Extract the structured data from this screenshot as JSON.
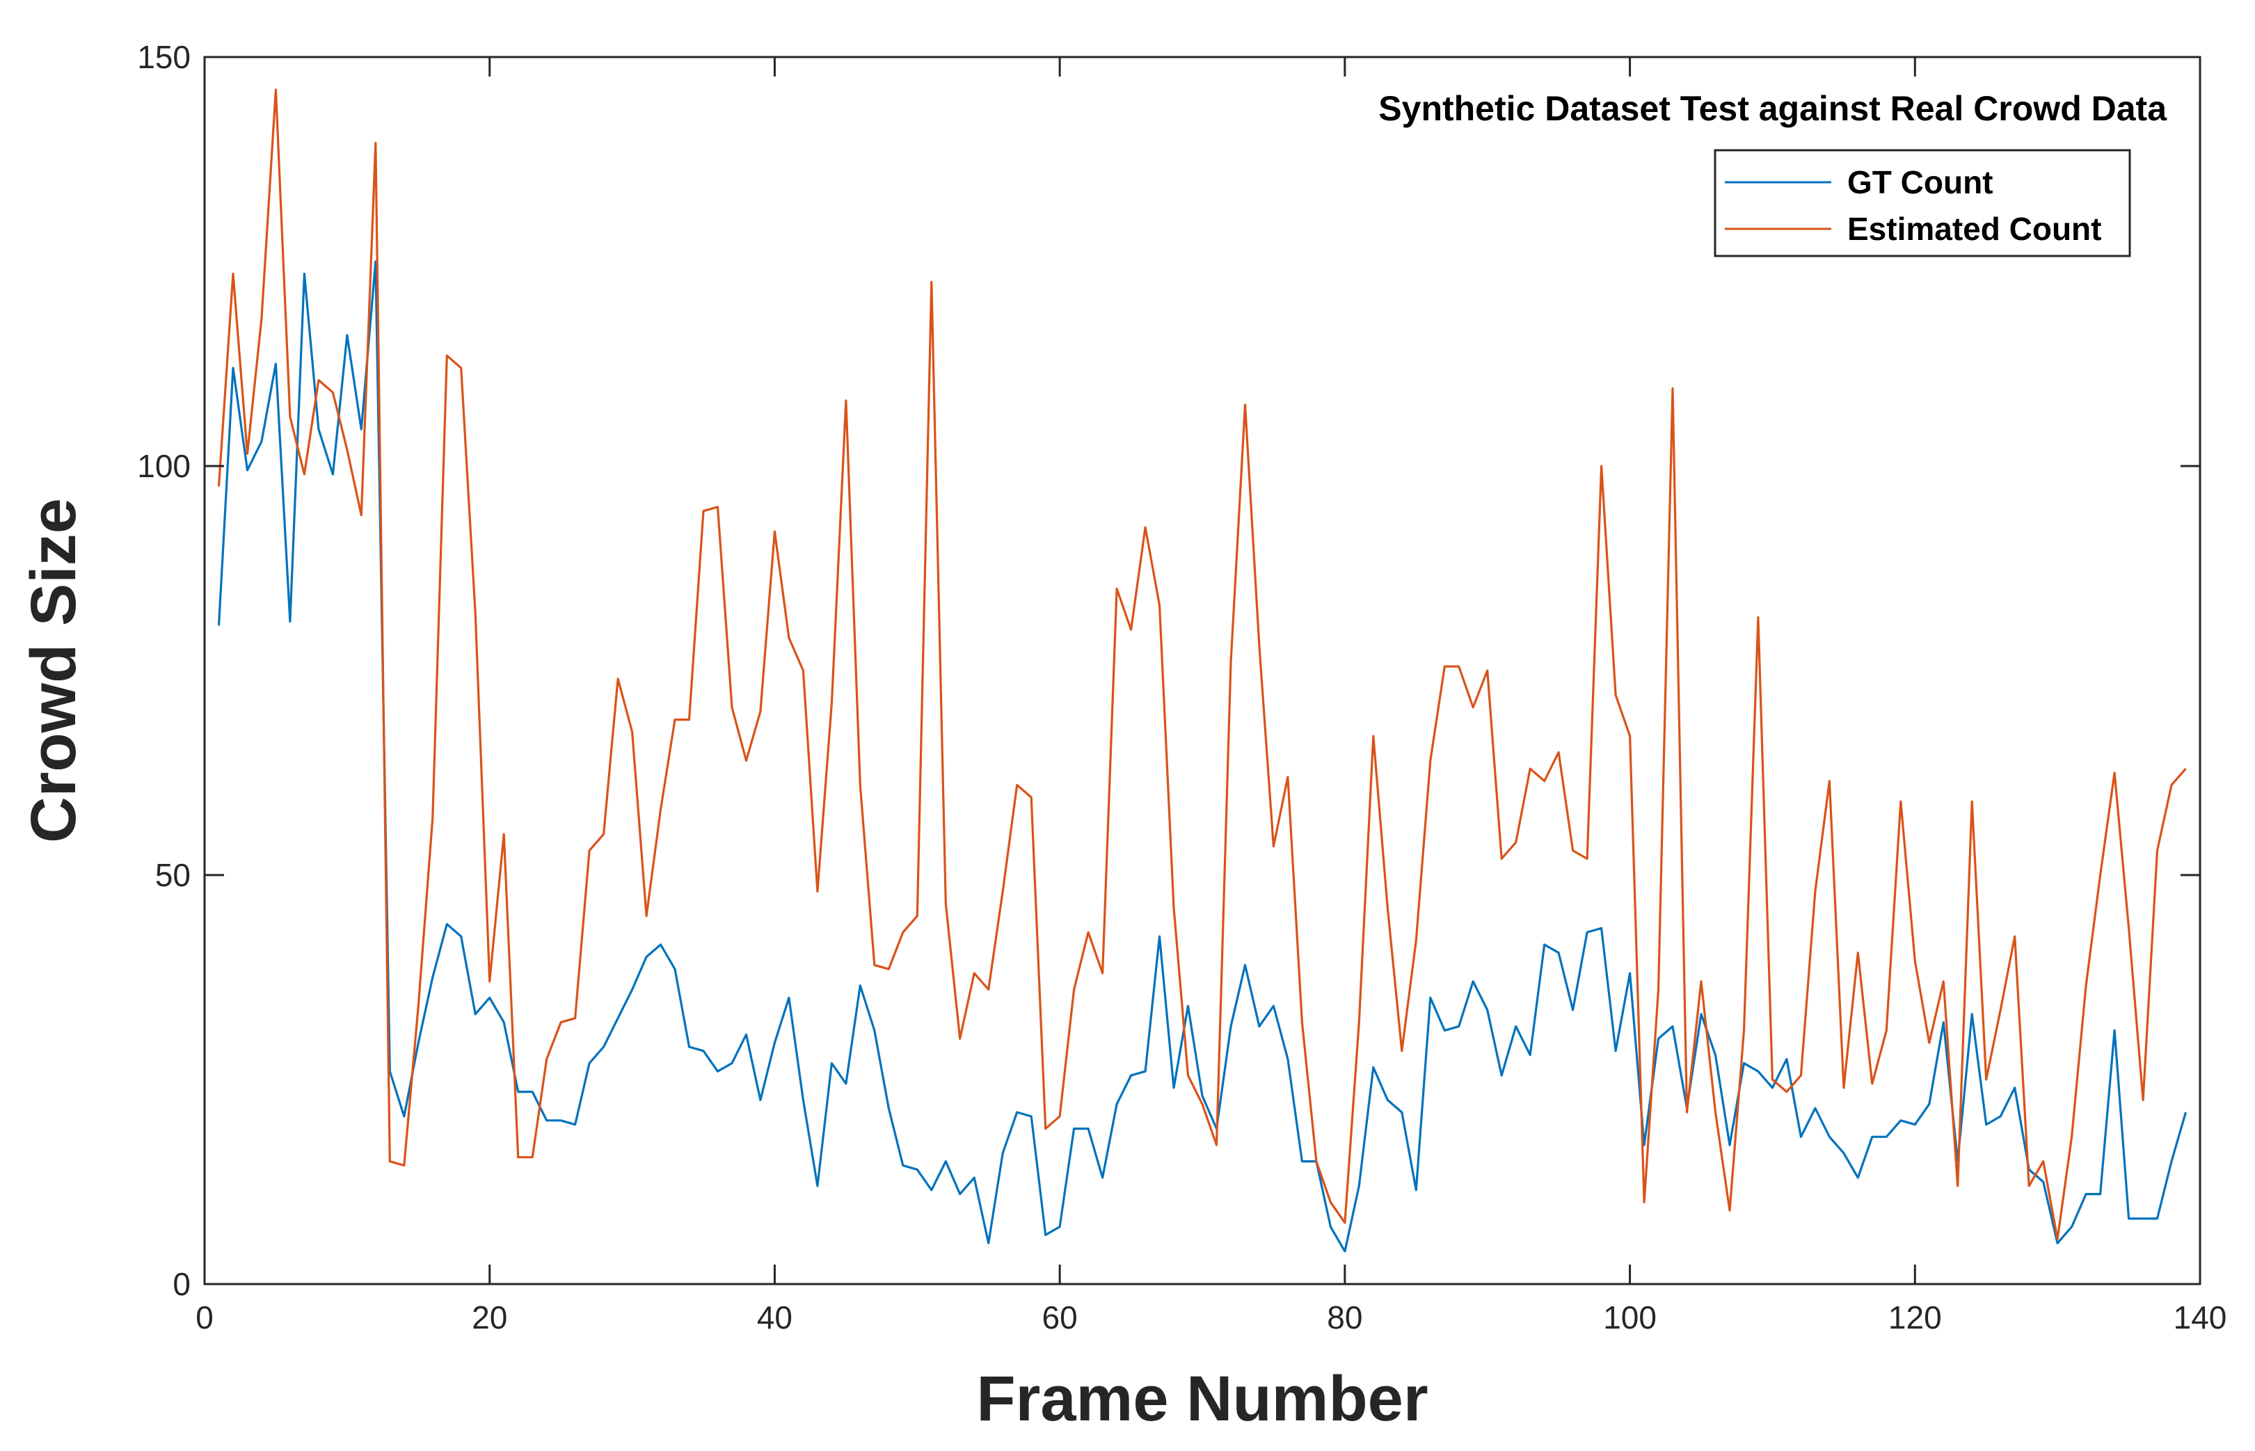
{
  "chart_data": {
    "type": "line",
    "title": "Synthetic Dataset Test against Real Crowd Data",
    "xlabel": "Frame Number",
    "ylabel": "Crowd Size",
    "xlim": [
      0,
      140
    ],
    "ylim": [
      0,
      150
    ],
    "xticks": [
      "0",
      "20",
      "40",
      "60",
      "80",
      "100",
      "120",
      "140"
    ],
    "yticks": [
      "0",
      "50",
      "100",
      "150"
    ],
    "grid": false,
    "legend_position": "top-right",
    "x": [
      1,
      2,
      3,
      4,
      5,
      6,
      7,
      8,
      9,
      10,
      11,
      12,
      13,
      14,
      15,
      16,
      17,
      18,
      19,
      20,
      21,
      22,
      23,
      24,
      25,
      26,
      27,
      28,
      29,
      30,
      31,
      32,
      33,
      34,
      35,
      36,
      37,
      38,
      39,
      40,
      41,
      42,
      43,
      44,
      45,
      46,
      47,
      48,
      49,
      50,
      51,
      52,
      53,
      54,
      55,
      56,
      57,
      58,
      59,
      60,
      61,
      62,
      63,
      64,
      65,
      66,
      67,
      68,
      69,
      70,
      71,
      72,
      73,
      74,
      75,
      76,
      77,
      78,
      79,
      80,
      81,
      82,
      83,
      84,
      85,
      86,
      87,
      88,
      89,
      90,
      91,
      92,
      93,
      94,
      95,
      96,
      97,
      98,
      99,
      100,
      101,
      102,
      103,
      104,
      105,
      106,
      107,
      108,
      109,
      110,
      111,
      112,
      113,
      114,
      115,
      116,
      117,
      118,
      119,
      120,
      121,
      122,
      123,
      124,
      125,
      126,
      127,
      128,
      129,
      130,
      131,
      132,
      133,
      134,
      135,
      136,
      137,
      138,
      139
    ],
    "series": [
      {
        "name": "GT Count",
        "color": "#0072BD",
        "values": [
          80.5,
          112,
          99.5,
          103,
          112.5,
          81,
          123.5,
          104.5,
          99,
          116,
          104.5,
          125,
          26,
          20.5,
          29.5,
          37.5,
          44,
          42.5,
          33,
          35,
          32,
          23.5,
          23.5,
          20,
          20,
          19.5,
          27,
          29,
          32.5,
          36,
          40,
          41.5,
          38.5,
          29,
          28.5,
          26,
          27,
          30.5,
          22.5,
          29.5,
          35,
          22.5,
          12,
          27,
          24.5,
          36.5,
          31,
          21.5,
          14.5,
          14,
          11.5,
          15,
          11,
          13,
          5,
          16,
          21,
          20.5,
          6,
          7,
          19,
          19,
          13,
          22,
          25.5,
          26,
          42.5,
          24,
          34,
          23,
          19,
          31.5,
          39,
          31.5,
          34,
          27.5,
          15,
          15,
          7,
          4,
          12,
          26.5,
          22.5,
          21,
          11.5,
          35,
          31,
          31.5,
          37,
          33.5,
          25.5,
          31.5,
          28,
          41.5,
          40.5,
          33.5,
          43,
          43.5,
          28.5,
          38,
          17,
          30,
          31.5,
          21.5,
          33,
          28,
          17,
          27,
          26,
          24,
          27.5,
          18,
          21.5,
          18,
          16,
          13,
          18,
          18,
          20,
          19.5,
          22,
          32,
          15,
          33,
          19.5,
          20.5,
          24,
          14,
          12.5,
          5,
          7,
          11,
          11,
          31,
          8,
          8,
          8,
          15,
          21
        ]
      },
      {
        "name": "Estimated Count",
        "color": "#D95319",
        "values": [
          97.5,
          123.5,
          101.5,
          118,
          146,
          106,
          99,
          110.5,
          109,
          102,
          94,
          139.5,
          15,
          14.5,
          34,
          57,
          113.5,
          112,
          82,
          37,
          55,
          15.5,
          15.5,
          27.5,
          32,
          32.5,
          53,
          55,
          74,
          67.5,
          45,
          58,
          69,
          69,
          94.5,
          95,
          70.5,
          64,
          70,
          92,
          79,
          75,
          48,
          71,
          108,
          61,
          39,
          38.5,
          43,
          45,
          122.5,
          46.5,
          30,
          38,
          36,
          48,
          61,
          59.5,
          19,
          20.5,
          36,
          43,
          38,
          85,
          80,
          92.5,
          83,
          46,
          25.5,
          22,
          17,
          76,
          107.5,
          78,
          53.5,
          62,
          32,
          15,
          10,
          7.5,
          32,
          67,
          46,
          28.5,
          42,
          64,
          75.5,
          75.5,
          70.5,
          75,
          52,
          54,
          63,
          61.5,
          65,
          53,
          52,
          100,
          72,
          67,
          10,
          36,
          109.5,
          21,
          37,
          21,
          9,
          31,
          81.5,
          25,
          23.5,
          25.5,
          48,
          61.5,
          24,
          40.5,
          24.5,
          31,
          59,
          39.5,
          29.5,
          37,
          12,
          59,
          25,
          33.5,
          42.5,
          12,
          15,
          5.5,
          18,
          36.5,
          50,
          62.5,
          43.5,
          22.5,
          53,
          61,
          63
        ]
      }
    ]
  }
}
